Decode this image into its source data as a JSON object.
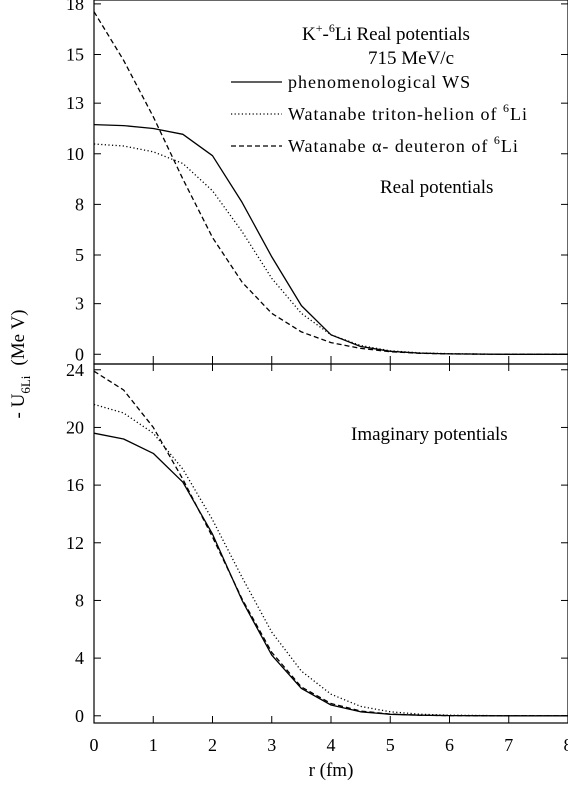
{
  "chart_data": [
    {
      "type": "line",
      "panel": "top",
      "title_main": "K",
      "title_sup1": "+",
      "title_mid": "-",
      "title_sup2": "6",
      "title_end": "Li   Real potentials",
      "momentum": "715 MeV/c",
      "panel_label": "Real potentials",
      "xlim": [
        0,
        8
      ],
      "ylim": [
        -0.5,
        18.2
      ],
      "yticks": [
        "0",
        "3",
        "5",
        "8",
        "10",
        "13",
        "15",
        "18"
      ],
      "ytick_values": [
        0,
        2.6,
        5.1,
        7.7,
        10.3,
        12.9,
        15.4,
        18
      ],
      "grid": false,
      "legend_position": "top-right",
      "legend": [
        {
          "text": "phenomenological WS",
          "style": "solid"
        },
        {
          "text": "Watanabe triton-helion of ",
          "sup": "6",
          "tail": "Li",
          "style": "dotted"
        },
        {
          "text": "Watanabe α- deuteron of ",
          "sup": "6",
          "tail": "Li",
          "style": "dashed"
        }
      ],
      "series": [
        {
          "style": "solid",
          "x": [
            0,
            0.5,
            1.0,
            1.5,
            2.0,
            2.5,
            3.0,
            3.5,
            4.0,
            4.5,
            5.0,
            5.5,
            6.0,
            7.0,
            8.0
          ],
          "y": [
            11.8,
            11.75,
            11.6,
            11.3,
            10.2,
            7.8,
            5.0,
            2.5,
            1.0,
            0.4,
            0.15,
            0.06,
            0.02,
            0.0,
            0.0
          ]
        },
        {
          "style": "dotted",
          "x": [
            0,
            0.5,
            1.0,
            1.5,
            2.0,
            2.5,
            3.0,
            3.5,
            4.0,
            4.5,
            5.0,
            5.5,
            6.0,
            7.0,
            8.0
          ],
          "y": [
            10.8,
            10.7,
            10.4,
            9.8,
            8.4,
            6.3,
            3.9,
            2.1,
            1.0,
            0.45,
            0.18,
            0.07,
            0.03,
            0.0,
            0.0
          ]
        },
        {
          "style": "dashed",
          "x": [
            0,
            0.5,
            1.0,
            1.5,
            2.0,
            2.5,
            3.0,
            3.5,
            4.0,
            4.5,
            5.0,
            5.5,
            6.0,
            7.0,
            8.0
          ],
          "y": [
            17.6,
            15.1,
            12.2,
            9.0,
            6.0,
            3.7,
            2.1,
            1.15,
            0.6,
            0.3,
            0.13,
            0.05,
            0.02,
            0.0,
            0.0
          ]
        }
      ]
    },
    {
      "type": "line",
      "panel": "bottom",
      "panel_label": "Imaginary potentials",
      "xlabel": "r (fm)",
      "xlim": [
        0,
        8
      ],
      "ylim": [
        -0.5,
        24.4
      ],
      "xticks": [
        "0",
        "1",
        "2",
        "3",
        "4",
        "5",
        "6",
        "7",
        "8"
      ],
      "yticks": [
        "0",
        "4",
        "8",
        "12",
        "16",
        "20",
        "24"
      ],
      "grid": false,
      "series": [
        {
          "style": "solid",
          "x": [
            0,
            0.5,
            1.0,
            1.5,
            2.0,
            2.5,
            3.0,
            3.5,
            4.0,
            4.5,
            5.0,
            5.5,
            6.0,
            7.0,
            8.0
          ],
          "y": [
            19.6,
            19.2,
            18.2,
            16.2,
            12.6,
            8.0,
            4.2,
            1.9,
            0.75,
            0.28,
            0.1,
            0.04,
            0.01,
            0.0,
            0.0
          ]
        },
        {
          "style": "dotted",
          "x": [
            0,
            0.5,
            1.0,
            1.5,
            2.0,
            2.5,
            3.0,
            3.5,
            4.0,
            4.5,
            5.0,
            5.5,
            6.0,
            7.0,
            8.0
          ],
          "y": [
            21.6,
            21.0,
            19.6,
            17.1,
            13.6,
            9.6,
            5.8,
            3.1,
            1.5,
            0.65,
            0.28,
            0.11,
            0.04,
            0.0,
            0.0
          ]
        },
        {
          "style": "dashed",
          "x": [
            0,
            0.5,
            1.0,
            1.5,
            2.0,
            2.5,
            3.0,
            3.5,
            4.0,
            4.5,
            5.0,
            5.5,
            6.0,
            7.0,
            8.0
          ],
          "y": [
            23.9,
            22.6,
            20.0,
            16.4,
            12.4,
            8.1,
            4.4,
            2.0,
            0.85,
            0.33,
            0.12,
            0.04,
            0.01,
            0.0,
            0.0
          ]
        }
      ]
    }
  ],
  "ylabel": {
    "prefix": "-  U",
    "sub1": "6",
    "sub2": "Li",
    "units": "(Me V)"
  }
}
